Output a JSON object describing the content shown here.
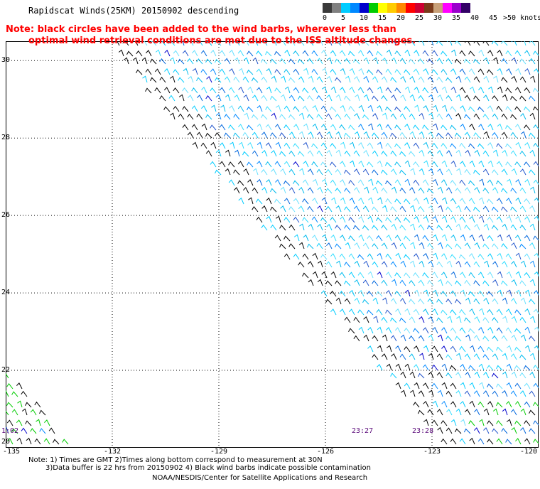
{
  "title": "Rapidscat Winds(25KM) 20150902 descending",
  "note": {
    "line1": "Note: black circles have been added to the wind barbs, wherever less than",
    "line2": "optimal wind retrieval conditions are met due to the ISS altitude changes."
  },
  "legend": {
    "labels": [
      "0",
      "5",
      "10",
      "15",
      "20",
      "25",
      "30",
      "35",
      "40",
      "45",
      ">50 knots"
    ],
    "colors": [
      "#3a3a3a",
      "#808080",
      "#00ccff",
      "#0088ff",
      "#0000cc",
      "#00cc00",
      "#ffff00",
      "#ffcc00",
      "#ff8800",
      "#ff0000",
      "#cc0033",
      "#7a3a1a",
      "#c8a078",
      "#ff00ff",
      "#9900cc",
      "#330066"
    ]
  },
  "map": {
    "lon_ticks": [
      "-135",
      "-132",
      "-129",
      "-126",
      "-123",
      "-120"
    ],
    "lat_ticks": [
      "30",
      "28",
      "26",
      "24",
      "22",
      "20"
    ],
    "lon_range": [
      -135,
      -120
    ],
    "lat_range": [
      20,
      30.5
    ],
    "time_labels": [
      "1:02",
      "23:27",
      "23:28"
    ]
  },
  "footer": {
    "line1": "Note: 1) Times are GMT 2)Times along bottom correspond to measurement at 30N",
    "line2": "3)Data buffer is 22 hrs from 20150902 4) Black wind barbs indicate possible contamination",
    "credit": "NOAA/NESDIS/Center for Satellite Applications and Research"
  }
}
